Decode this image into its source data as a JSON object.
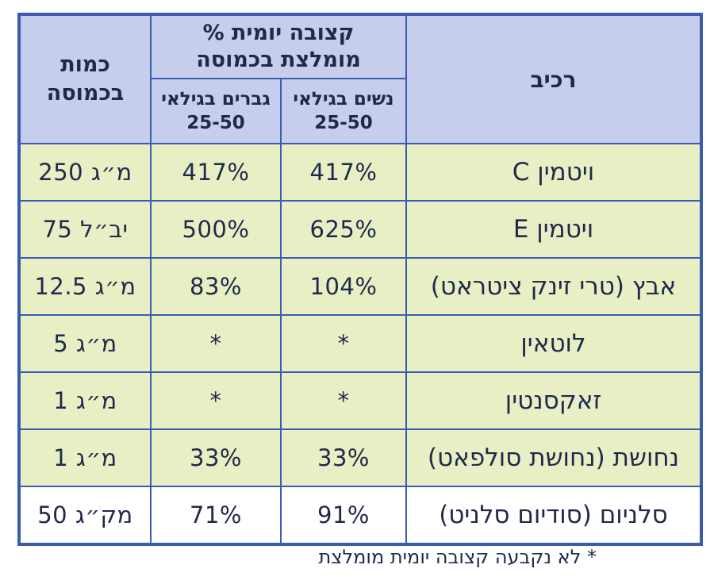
{
  "header": {
    "amount": "כמות\nבכמוסה",
    "pct_group": "% קצובה יומית\nמומלצת בכמוסה",
    "men": "גברים בגילאי\n25-50",
    "women": "נשים בגילאי\n25-50",
    "component": "רכיב"
  },
  "rows": [
    {
      "component": "ויטמין C",
      "women": "417%",
      "men": "417%",
      "amount": "250 מ״ג"
    },
    {
      "component": "ויטמין E",
      "women": "625%",
      "men": "500%",
      "amount": "75 יב״ל"
    },
    {
      "component": "אבץ (טרי זינק ציטראט)",
      "women": "104%",
      "men": "83%",
      "amount": "12.5 מ״ג"
    },
    {
      "component": "לוטאין",
      "women": "*",
      "men": "*",
      "amount": "5 מ״ג"
    },
    {
      "component": "זאקסנטין",
      "women": "*",
      "men": "*",
      "amount": "1 מ״ג"
    },
    {
      "component": "נחושת (נחושת סולפאט)",
      "women": "33%",
      "men": "33%",
      "amount": "1 מ״ג"
    },
    {
      "component": "סלניום (סודיום סלניט)",
      "women": "91%",
      "men": "71%",
      "amount": "50 מק״ג"
    }
  ],
  "footnote": "* לא נקבעה קצובה יומית מומלצת",
  "colors": {
    "border": "#3a5bb0",
    "header_bg": "#c7cdec",
    "row_shade": "#e8efc4",
    "row_plain": "#ffffff"
  }
}
